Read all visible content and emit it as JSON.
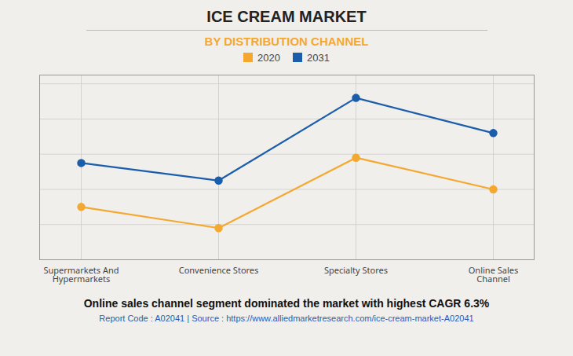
{
  "chart_data": {
    "type": "line",
    "title": "ICE CREAM MARKET",
    "subtitle": "BY DISTRIBUTION CHANNEL",
    "categories": [
      "Supermarkets And\nHypermarkets",
      "Convenience Stores",
      "Specialty Stores",
      "Online Sales\nChannel"
    ],
    "series": [
      {
        "name": "2020",
        "color": "#F5A830",
        "values": [
          0.3,
          0.18,
          0.58,
          0.4
        ]
      },
      {
        "name": "2031",
        "color": "#1A5DAB",
        "values": [
          0.55,
          0.45,
          0.92,
          0.72
        ]
      }
    ],
    "ylim": [
      0,
      1.05
    ],
    "yticks": [
      0,
      0.2,
      0.4,
      0.6,
      0.8,
      1.0
    ],
    "grid": true,
    "tick_labels": "x",
    "legend": "top",
    "marker": "circle",
    "line_style": "solid",
    "footer": "Online sales channel segment dominated the market with highest CAGR 6.3%",
    "source": "Report Code : A02041  |  Source : https://www.alliedmarketresearch.com/ice-cream-market-A02041"
  }
}
